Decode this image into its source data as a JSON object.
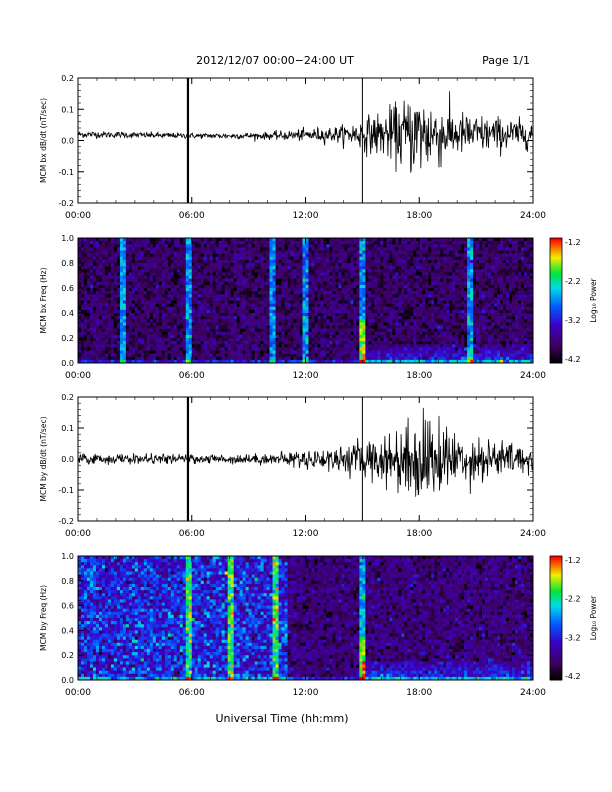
{
  "header": {
    "title": "2012/12/07  00:00−24:00 UT",
    "page": "Page 1/1"
  },
  "footer": {
    "xlabel": "Universal Time (hh:mm)"
  },
  "colorbar": {
    "title": "Log₁₀ Power",
    "ticks": [
      "-1.2",
      "-2.2",
      "-3.2",
      "-4.2"
    ],
    "range": [
      -4.2,
      -1.2
    ]
  },
  "chart_data": [
    {
      "type": "line",
      "ylabel": "MCM bx dB/dt (nT/sec)",
      "xlim": [
        0,
        24
      ],
      "ylim": [
        -0.2,
        0.2
      ],
      "xticks": [
        "00:00",
        "06:00",
        "12:00",
        "18:00",
        "24:00"
      ],
      "yticks": [
        "0.2",
        "0.1",
        "0.0",
        "-0.1",
        "-0.2"
      ],
      "spikes_hours": [
        5.8,
        15.0
      ],
      "envelope": [
        {
          "t": 0,
          "amp": 0.008,
          "base": 0.02
        },
        {
          "t": 6,
          "amp": 0.006,
          "base": 0.015
        },
        {
          "t": 10,
          "amp": 0.008,
          "base": 0.015
        },
        {
          "t": 14,
          "amp": 0.02,
          "base": 0.02
        },
        {
          "t": 16.5,
          "amp": 0.06,
          "base": 0.02
        },
        {
          "t": 18,
          "amp": 0.1,
          "base": 0.02
        },
        {
          "t": 20,
          "amp": 0.05,
          "base": 0.02
        },
        {
          "t": 24,
          "amp": 0.03,
          "base": 0.02
        }
      ]
    },
    {
      "type": "heatmap",
      "ylabel": "MCM bx Freq (Hz)",
      "xlim": [
        0,
        24
      ],
      "ylim": [
        0,
        1.0
      ],
      "xticks": [
        "00:00",
        "06:00",
        "12:00",
        "18:00",
        "24:00"
      ],
      "yticks": [
        "1.0",
        "0.8",
        "0.6",
        "0.4",
        "0.2",
        "0.0"
      ],
      "zlim": [
        -4.2,
        -1.2
      ],
      "bright_lines_hours": [
        2.4,
        5.8,
        10.2,
        12.0,
        15.0,
        20.7
      ],
      "background_level": -3.8
    },
    {
      "type": "line",
      "ylabel": "MCM by dB/dt (nT/sec)",
      "xlim": [
        0,
        24
      ],
      "ylim": [
        -0.2,
        0.2
      ],
      "xticks": [
        "00:00",
        "06:00",
        "12:00",
        "18:00",
        "24:00"
      ],
      "yticks": [
        "0.2",
        "0.1",
        "0.0",
        "-0.1",
        "-0.2"
      ],
      "spikes_hours": [
        5.8,
        15.0
      ],
      "envelope": [
        {
          "t": 0,
          "amp": 0.012,
          "base": 0.0
        },
        {
          "t": 6,
          "amp": 0.01,
          "base": 0.0
        },
        {
          "t": 10,
          "amp": 0.012,
          "base": 0.0
        },
        {
          "t": 14,
          "amp": 0.03,
          "base": 0.0
        },
        {
          "t": 16.5,
          "amp": 0.06,
          "base": 0.0
        },
        {
          "t": 18,
          "amp": 0.11,
          "base": 0.0
        },
        {
          "t": 20,
          "amp": 0.06,
          "base": 0.0
        },
        {
          "t": 24,
          "amp": 0.03,
          "base": 0.0
        }
      ]
    },
    {
      "type": "heatmap",
      "ylabel": "MCM by Freq (Hz)",
      "xlim": [
        0,
        24
      ],
      "ylim": [
        0,
        1.0
      ],
      "xticks": [
        "00:00",
        "06:00",
        "12:00",
        "18:00",
        "24:00"
      ],
      "yticks": [
        "1.0",
        "0.8",
        "0.6",
        "0.4",
        "0.2",
        "0.0"
      ],
      "zlim": [
        -4.2,
        -1.2
      ],
      "bright_lines_hours": [
        5.8,
        8.0,
        10.4,
        15.0
      ],
      "active_band_hours": [
        0,
        11
      ],
      "background_level": -3.7
    }
  ]
}
